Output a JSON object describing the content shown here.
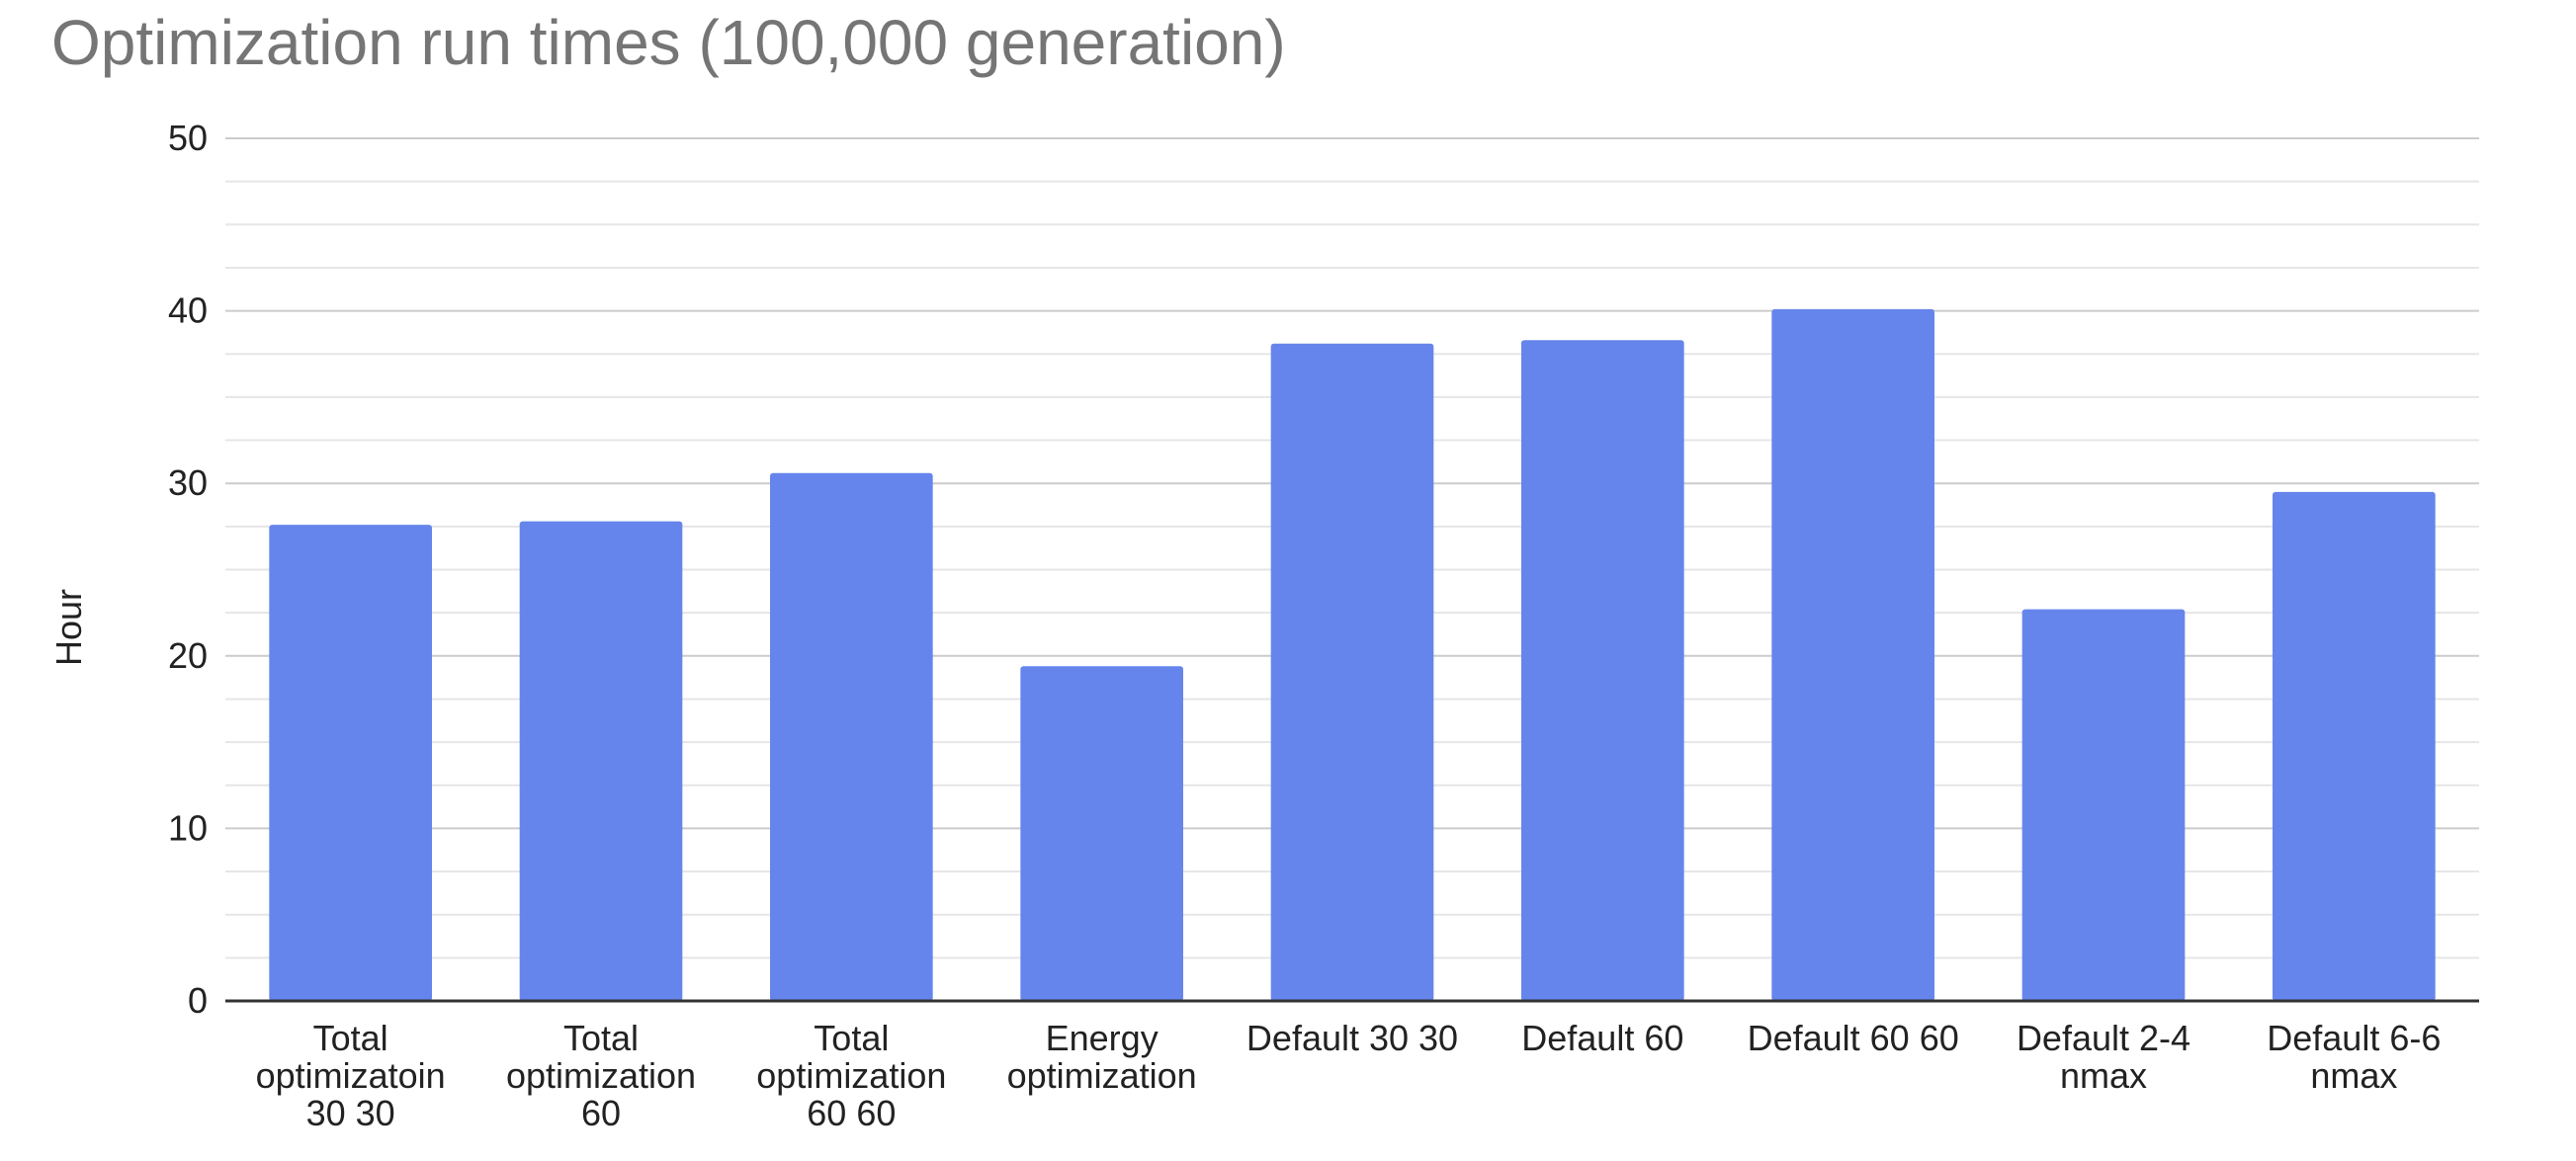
{
  "chart_data": {
    "type": "bar",
    "title": "Optimization run times (100,000 generation)",
    "xlabel": "",
    "ylabel": "Hour",
    "ylim": [
      0,
      50
    ],
    "yticks": [
      0,
      10,
      20,
      30,
      40,
      50
    ],
    "grid": true,
    "legend": "none",
    "categories": [
      [
        "Total",
        "optimizatoin",
        "30 30"
      ],
      [
        "Total",
        "optimization",
        "60"
      ],
      [
        "Total",
        "optimization",
        "60 60"
      ],
      [
        "Energy",
        "optimization"
      ],
      [
        "Default 30 30"
      ],
      [
        "Default 60"
      ],
      [
        "Default 60 60"
      ],
      [
        "Default 2-4",
        "nmax"
      ],
      [
        "Default 6-6",
        "nmax"
      ]
    ],
    "values": [
      27.6,
      27.8,
      30.6,
      19.4,
      38.1,
      38.3,
      40.1,
      22.7,
      29.5
    ],
    "bar_color": "#6685EC",
    "axis_color": "#333333",
    "major_grid_color": "#CCCCCC",
    "minor_grid_color": "#E6E6E6"
  }
}
